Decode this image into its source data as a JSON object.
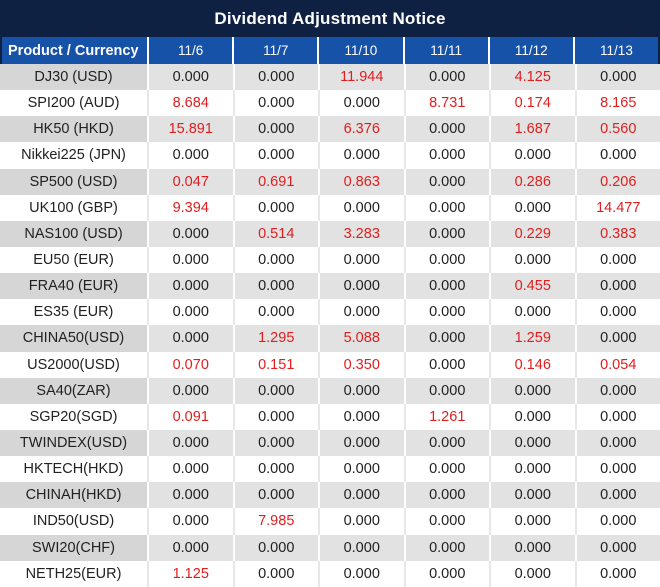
{
  "title": "Dividend Adjustment Notice",
  "zero_string": "0.000",
  "colors": {
    "title_bg": "#0e2142",
    "header_bg": "#1552a8",
    "header_text": "#ffffff",
    "row_gray_product": "#d6d6d6",
    "row_gray_value": "#e2e2e2",
    "row_white": "#ffffff",
    "zero_value_text": "#212121",
    "nonzero_value_text": "#e01e1e"
  },
  "table": {
    "header": [
      "Product / Currency",
      "11/6",
      "11/7",
      "11/10",
      "11/11",
      "11/12",
      "11/13"
    ],
    "rows": [
      {
        "product": "DJ30 (USD)",
        "values": [
          "0.000",
          "0.000",
          "11.944",
          "0.000",
          "4.125",
          "0.000"
        ]
      },
      {
        "product": "SPI200 (AUD)",
        "values": [
          "8.684",
          "0.000",
          "0.000",
          "8.731",
          "0.174",
          "8.165"
        ]
      },
      {
        "product": "HK50 (HKD)",
        "values": [
          "15.891",
          "0.000",
          "6.376",
          "0.000",
          "1.687",
          "0.560"
        ]
      },
      {
        "product": "Nikkei225 (JPN)",
        "values": [
          "0.000",
          "0.000",
          "0.000",
          "0.000",
          "0.000",
          "0.000"
        ]
      },
      {
        "product": "SP500 (USD)",
        "values": [
          "0.047",
          "0.691",
          "0.863",
          "0.000",
          "0.286",
          "0.206"
        ]
      },
      {
        "product": "UK100 (GBP)",
        "values": [
          "9.394",
          "0.000",
          "0.000",
          "0.000",
          "0.000",
          "14.477"
        ]
      },
      {
        "product": "NAS100 (USD)",
        "values": [
          "0.000",
          "0.514",
          "3.283",
          "0.000",
          "0.229",
          "0.383"
        ]
      },
      {
        "product": "EU50 (EUR)",
        "values": [
          "0.000",
          "0.000",
          "0.000",
          "0.000",
          "0.000",
          "0.000"
        ]
      },
      {
        "product": "FRA40 (EUR)",
        "values": [
          "0.000",
          "0.000",
          "0.000",
          "0.000",
          "0.455",
          "0.000"
        ]
      },
      {
        "product": "ES35 (EUR)",
        "values": [
          "0.000",
          "0.000",
          "0.000",
          "0.000",
          "0.000",
          "0.000"
        ]
      },
      {
        "product": "CHINA50(USD)",
        "values": [
          "0.000",
          "1.295",
          "5.088",
          "0.000",
          "1.259",
          "0.000"
        ]
      },
      {
        "product": "US2000(USD)",
        "values": [
          "0.070",
          "0.151",
          "0.350",
          "0.000",
          "0.146",
          "0.054"
        ]
      },
      {
        "product": "SA40(ZAR)",
        "values": [
          "0.000",
          "0.000",
          "0.000",
          "0.000",
          "0.000",
          "0.000"
        ]
      },
      {
        "product": "SGP20(SGD)",
        "values": [
          "0.091",
          "0.000",
          "0.000",
          "1.261",
          "0.000",
          "0.000"
        ]
      },
      {
        "product": "TWINDEX(USD)",
        "values": [
          "0.000",
          "0.000",
          "0.000",
          "0.000",
          "0.000",
          "0.000"
        ]
      },
      {
        "product": "HKTECH(HKD)",
        "values": [
          "0.000",
          "0.000",
          "0.000",
          "0.000",
          "0.000",
          "0.000"
        ]
      },
      {
        "product": "CHINAH(HKD)",
        "values": [
          "0.000",
          "0.000",
          "0.000",
          "0.000",
          "0.000",
          "0.000"
        ]
      },
      {
        "product": "IND50(USD)",
        "values": [
          "0.000",
          "7.985",
          "0.000",
          "0.000",
          "0.000",
          "0.000"
        ]
      },
      {
        "product": "SWI20(CHF)",
        "values": [
          "0.000",
          "0.000",
          "0.000",
          "0.000",
          "0.000",
          "0.000"
        ]
      },
      {
        "product": "NETH25(EUR)",
        "values": [
          "1.125",
          "0.000",
          "0.000",
          "0.000",
          "0.000",
          "0.000"
        ]
      }
    ]
  }
}
